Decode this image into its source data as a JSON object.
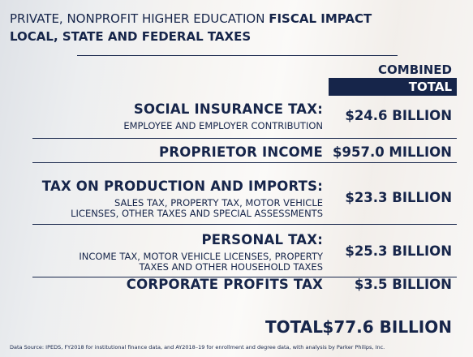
{
  "header": {
    "title_light": "PRIVATE, NONPROFIT HIGHER EDUCATION",
    "title_bold": "FISCAL IMPACT",
    "subtitle": "LOCAL, STATE AND FEDERAL TAXES"
  },
  "column_header": {
    "line1": "COMBINED",
    "line2": "TOTAL"
  },
  "rows": [
    {
      "label": "SOCIAL INSURANCE TAX:",
      "details": [
        "EMPLOYEE AND EMPLOYER CONTRIBUTION"
      ],
      "value": "$24.6 BILLION"
    },
    {
      "label": "PROPRIETOR INCOME",
      "details": [],
      "value": "$957.0 MILLION"
    },
    {
      "label": "TAX ON PRODUCTION AND IMPORTS:",
      "details": [
        "SALES TAX, PROPERTY TAX, MOTOR VEHICLE",
        "LICENSES, OTHER TAXES AND SPECIAL ASSESSMENTS"
      ],
      "value": "$23.3 BILLION"
    },
    {
      "label": "PERSONAL TAX:",
      "details": [
        "INCOME TAX, MOTOR VEHICLE LICENSES, PROPERTY",
        "TAXES AND OTHER HOUSEHOLD TAXES"
      ],
      "value": "$25.3 BILLION"
    },
    {
      "label": "CORPORATE PROFITS TAX",
      "details": [],
      "value": "$3.5 BILLION"
    }
  ],
  "total": {
    "label": "TOTAL",
    "value": "$77.6 BILLION"
  },
  "source": "Data Source: IPEDS, FY2018 for institutional finance data, and AY2018–19 for enrollment and degree data, with analysis by Parker Philips, Inc."
}
